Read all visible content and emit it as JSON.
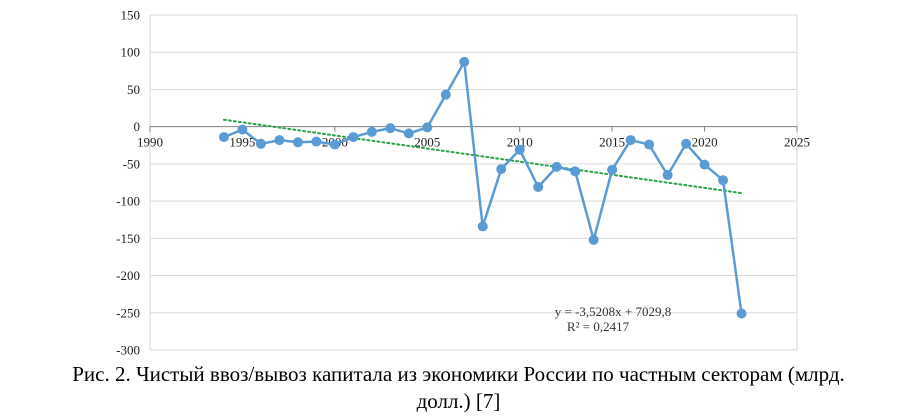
{
  "chart_data": {
    "type": "line",
    "title": "",
    "xlabel": "",
    "ylabel": "",
    "xlim": [
      1990,
      2025
    ],
    "ylim": [
      -300,
      150
    ],
    "x_ticks": [
      1990,
      1995,
      2000,
      2005,
      2010,
      2015,
      2020,
      2025
    ],
    "y_ticks": [
      150,
      100,
      50,
      0,
      -50,
      -100,
      -150,
      -200,
      -250,
      -300
    ],
    "grid": "horizontal",
    "legend": "none",
    "series": [
      {
        "color": "#5b9bd5",
        "x": [
          1994,
          1995,
          1996,
          1997,
          1998,
          1999,
          2000,
          2001,
          2002,
          2003,
          2004,
          2005,
          2006,
          2007,
          2008,
          2009,
          2010,
          2011,
          2012,
          2013,
          2014,
          2015,
          2016,
          2017,
          2018,
          2019,
          2020,
          2021,
          2022
        ],
        "y": [
          -14,
          -4,
          -23,
          -18,
          -21,
          -20,
          -24,
          -14,
          -7,
          -2,
          -9,
          -1,
          43,
          87,
          -134,
          -57,
          -31,
          -81,
          -54,
          -60,
          -152,
          -58,
          -18,
          -24,
          -65,
          -23,
          -51,
          -72,
          -251
        ]
      }
    ],
    "trendline": {
      "type": "linear",
      "color": "#2aa24a",
      "style": "dotted",
      "equation": "y = -3,5208x + 7029,8",
      "r_squared": "R² = 0,2417",
      "x_start": 1994,
      "x_end": 2022
    }
  },
  "caption": {
    "line1": "Рис. 2. Чистый ввоз/вывоз капитала из экономики России по частным секторам (млрд.",
    "line2": "долл.) [7]"
  }
}
